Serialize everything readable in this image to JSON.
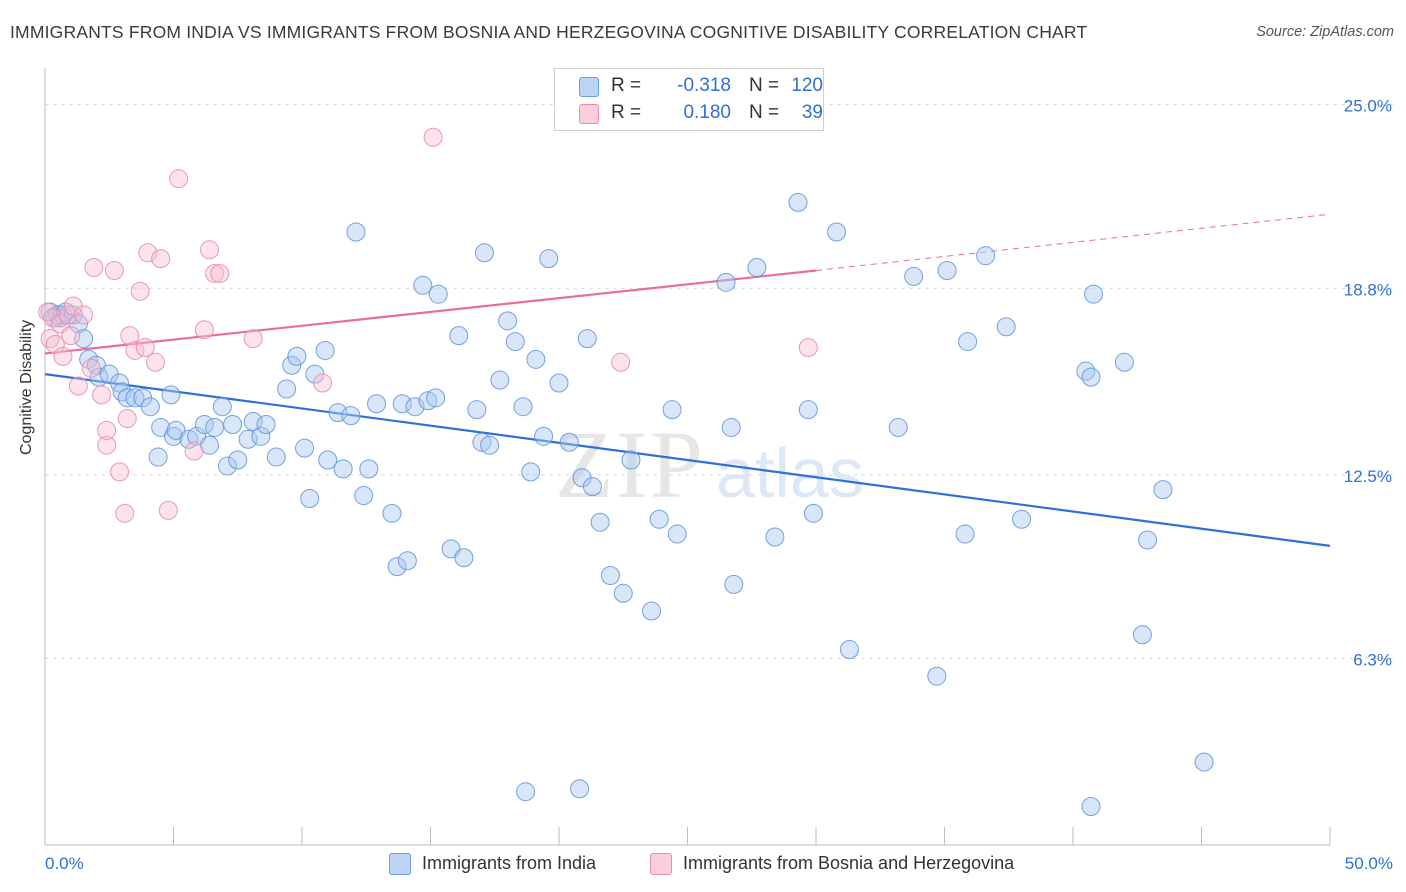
{
  "title": "IMMIGRANTS FROM INDIA VS IMMIGRANTS FROM BOSNIA AND HERZEGOVINA COGNITIVE DISABILITY CORRELATION CHART",
  "source": "Source: ZipAtlas.com",
  "watermark": {
    "zip": "ZIP",
    "atlas": "atlas"
  },
  "colors": {
    "blue": "#2f6fd6",
    "blue_fill": "#aac8f0",
    "pink": "#e86f9b",
    "pink_fill": "#f7bed2",
    "grid": "#d9d9d9",
    "axis_text": "#2f6fd6"
  },
  "legend": {
    "india": {
      "r_label": "R =",
      "r_value": "-0.318",
      "n_label": "N =",
      "n_value": "120"
    },
    "bosnia": {
      "r_label": "R =",
      "r_value": "0.180",
      "n_label": "N =",
      "n_value": "39"
    }
  },
  "bottom_legend": {
    "india": "Immigrants from India",
    "bosnia": "Immigrants from Bosnia and Herzegovina"
  },
  "chart_data": {
    "type": "scatter",
    "title": "IMMIGRANTS FROM INDIA VS IMMIGRANTS FROM BOSNIA AND HERZEGOVINA COGNITIVE DISABILITY CORRELATION CHART",
    "xlabel": "",
    "ylabel": "Cognitive Disability",
    "xlim": [
      0,
      50
    ],
    "ylim": [
      0,
      25.9
    ],
    "x_tick_labels": [
      "0.0%",
      "50.0%"
    ],
    "y_ticks": [
      6.3,
      12.5,
      18.8,
      25.0
    ],
    "y_tick_labels": [
      "6.3%",
      "12.5%",
      "18.8%",
      "25.0%"
    ],
    "grid": true,
    "legend_position": "top-center",
    "series": [
      {
        "name": "Immigrants from India",
        "color": "#2f6fd6",
        "trend": {
          "x": [
            0,
            50
          ],
          "y": [
            15.9,
            10.1
          ]
        },
        "points": [
          [
            0.2,
            18.0
          ],
          [
            0.4,
            17.8
          ],
          [
            0.5,
            17.9
          ],
          [
            0.6,
            17.8
          ],
          [
            0.7,
            17.9
          ],
          [
            0.8,
            18.0
          ],
          [
            1.1,
            17.9
          ],
          [
            1.3,
            17.6
          ],
          [
            1.5,
            17.1
          ],
          [
            1.7,
            16.4
          ],
          [
            2.0,
            16.2
          ],
          [
            2.1,
            15.8
          ],
          [
            2.5,
            15.9
          ],
          [
            2.9,
            15.6
          ],
          [
            3.0,
            15.3
          ],
          [
            3.2,
            15.1
          ],
          [
            3.5,
            15.1
          ],
          [
            3.8,
            15.1
          ],
          [
            4.1,
            14.8
          ],
          [
            4.4,
            13.1
          ],
          [
            4.5,
            14.1
          ],
          [
            4.9,
            15.2
          ],
          [
            5.0,
            13.8
          ],
          [
            5.1,
            14.0
          ],
          [
            5.6,
            13.7
          ],
          [
            5.9,
            13.8
          ],
          [
            6.2,
            14.2
          ],
          [
            6.4,
            13.5
          ],
          [
            6.6,
            14.1
          ],
          [
            6.9,
            14.8
          ],
          [
            7.1,
            12.8
          ],
          [
            7.3,
            14.2
          ],
          [
            7.5,
            13.0
          ],
          [
            7.9,
            13.7
          ],
          [
            8.1,
            14.3
          ],
          [
            8.4,
            13.8
          ],
          [
            8.6,
            14.2
          ],
          [
            9.0,
            13.1
          ],
          [
            9.4,
            15.4
          ],
          [
            9.6,
            16.2
          ],
          [
            9.8,
            16.5
          ],
          [
            10.1,
            13.4
          ],
          [
            10.3,
            11.7
          ],
          [
            10.5,
            15.9
          ],
          [
            10.9,
            16.7
          ],
          [
            11.0,
            13.0
          ],
          [
            11.4,
            14.6
          ],
          [
            11.6,
            12.7
          ],
          [
            11.9,
            14.5
          ],
          [
            12.4,
            11.8
          ],
          [
            12.6,
            12.7
          ],
          [
            12.9,
            14.9
          ],
          [
            12.1,
            20.7
          ],
          [
            13.5,
            11.2
          ],
          [
            13.7,
            9.4
          ],
          [
            13.9,
            14.9
          ],
          [
            14.1,
            9.6
          ],
          [
            14.4,
            14.8
          ],
          [
            14.7,
            18.9
          ],
          [
            14.9,
            15.0
          ],
          [
            15.2,
            15.1
          ],
          [
            15.3,
            18.6
          ],
          [
            15.8,
            10.0
          ],
          [
            16.1,
            17.2
          ],
          [
            16.3,
            9.7
          ],
          [
            16.8,
            14.7
          ],
          [
            17.0,
            13.6
          ],
          [
            17.1,
            20.0
          ],
          [
            17.3,
            13.5
          ],
          [
            17.7,
            15.7
          ],
          [
            18.0,
            17.7
          ],
          [
            18.3,
            17.0
          ],
          [
            18.6,
            14.8
          ],
          [
            18.9,
            12.6
          ],
          [
            19.1,
            16.4
          ],
          [
            19.4,
            13.8
          ],
          [
            19.6,
            19.8
          ],
          [
            20.0,
            15.6
          ],
          [
            20.4,
            13.6
          ],
          [
            20.9,
            12.4
          ],
          [
            21.1,
            17.1
          ],
          [
            21.3,
            12.1
          ],
          [
            21.6,
            10.9
          ],
          [
            22.0,
            9.1
          ],
          [
            22.8,
            13.0
          ],
          [
            22.5,
            8.5
          ],
          [
            23.9,
            11.0
          ],
          [
            23.6,
            7.9
          ],
          [
            24.4,
            14.7
          ],
          [
            24.6,
            10.5
          ],
          [
            26.5,
            19.0
          ],
          [
            26.7,
            14.1
          ],
          [
            26.8,
            8.8
          ],
          [
            27.7,
            19.5
          ],
          [
            28.4,
            10.4
          ],
          [
            29.3,
            21.7
          ],
          [
            29.7,
            14.7
          ],
          [
            29.9,
            11.2
          ],
          [
            30.8,
            20.7
          ],
          [
            31.3,
            6.6
          ],
          [
            33.2,
            14.1
          ],
          [
            33.8,
            19.2
          ],
          [
            34.7,
            5.7
          ],
          [
            35.1,
            19.4
          ],
          [
            35.8,
            10.5
          ],
          [
            35.9,
            17.0
          ],
          [
            36.6,
            19.9
          ],
          [
            37.4,
            17.5
          ],
          [
            38.0,
            11.0
          ],
          [
            40.5,
            16.0
          ],
          [
            40.7,
            15.8
          ],
          [
            40.8,
            18.6
          ],
          [
            42.0,
            16.3
          ],
          [
            42.7,
            7.1
          ],
          [
            42.9,
            10.3
          ],
          [
            43.5,
            12.0
          ],
          [
            45.1,
            2.8
          ],
          [
            40.7,
            1.3
          ],
          [
            18.7,
            1.8
          ],
          [
            20.8,
            1.9
          ]
        ]
      },
      {
        "name": "Immigrants from Bosnia and Herzegovina",
        "color": "#e86f9b",
        "trend": {
          "x": [
            0,
            30
          ],
          "y": [
            16.6,
            19.4
          ],
          "x_dashed": [
            30,
            50
          ],
          "y_dashed": [
            19.4,
            21.3
          ]
        },
        "points": [
          [
            0.1,
            18.0
          ],
          [
            0.2,
            17.1
          ],
          [
            0.3,
            17.8
          ],
          [
            0.4,
            16.9
          ],
          [
            0.6,
            17.6
          ],
          [
            0.7,
            16.5
          ],
          [
            0.9,
            17.9
          ],
          [
            1.0,
            17.2
          ],
          [
            1.1,
            18.2
          ],
          [
            1.3,
            15.5
          ],
          [
            1.5,
            17.9
          ],
          [
            1.8,
            16.1
          ],
          [
            1.9,
            19.5
          ],
          [
            2.2,
            15.2
          ],
          [
            2.4,
            13.5
          ],
          [
            2.4,
            14.0
          ],
          [
            2.7,
            19.4
          ],
          [
            2.9,
            12.6
          ],
          [
            3.1,
            11.2
          ],
          [
            3.2,
            14.4
          ],
          [
            3.3,
            17.2
          ],
          [
            3.5,
            16.7
          ],
          [
            3.7,
            18.7
          ],
          [
            3.9,
            16.8
          ],
          [
            4.0,
            20.0
          ],
          [
            4.3,
            16.3
          ],
          [
            4.5,
            19.8
          ],
          [
            4.8,
            11.3
          ],
          [
            5.2,
            22.5
          ],
          [
            5.8,
            13.3
          ],
          [
            6.2,
            17.4
          ],
          [
            6.4,
            20.1
          ],
          [
            6.6,
            19.3
          ],
          [
            6.8,
            19.3
          ],
          [
            8.1,
            17.1
          ],
          [
            10.8,
            15.6
          ],
          [
            15.1,
            23.9
          ],
          [
            29.7,
            16.8
          ],
          [
            22.4,
            16.3
          ]
        ]
      }
    ]
  }
}
